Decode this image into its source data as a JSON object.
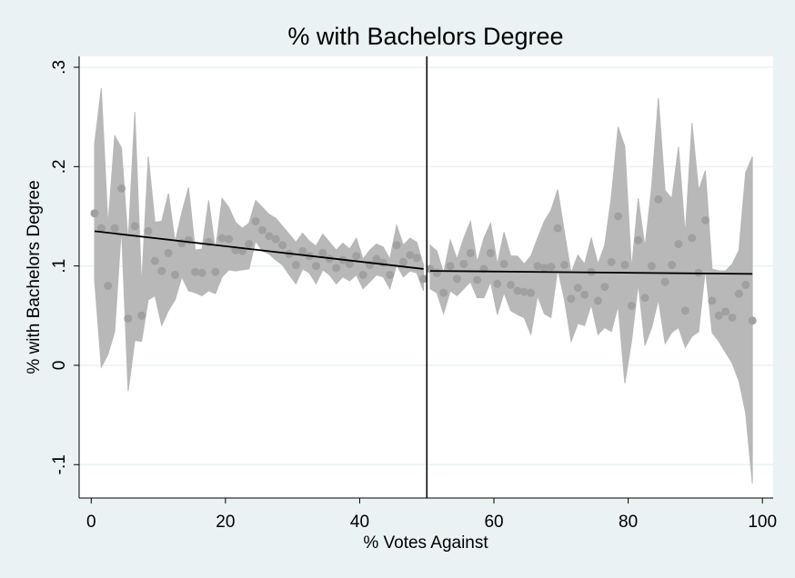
{
  "chart_data": {
    "type": "scatter",
    "title": "% with Bachelors Degree",
    "xlabel": "% Votes Against",
    "ylabel": "% with Bachelors Degree",
    "xlim": [
      -1.8,
      101.6
    ],
    "ylim": [
      -0.1336,
      0.311
    ],
    "xticks": [
      0,
      20,
      40,
      60,
      80,
      100
    ],
    "yticks": [
      {
        "value": -0.1,
        "label": "-.1"
      },
      0,
      {
        "value": 0.1,
        "label": ".1"
      },
      {
        "value": 0.2,
        "label": ".2"
      },
      {
        "value": 0.3,
        "label": ".3"
      }
    ],
    "grid": true,
    "cutoff": 50,
    "point_color": "#a0a0a0",
    "band_color": "#b8b8b8",
    "line_color": "#000000",
    "title_color": "#1a476f",
    "x": [
      0.5,
      1.5,
      2.5,
      3.5,
      4.5,
      5.5,
      6.5,
      7.5,
      8.5,
      9.5,
      10.5,
      11.5,
      12.5,
      13.5,
      14.5,
      15.5,
      16.5,
      17.5,
      18.5,
      19.5,
      20.5,
      21.5,
      22.5,
      23.5,
      24.5,
      25.5,
      26.5,
      27.5,
      28.5,
      29.5,
      30.5,
      31.5,
      32.5,
      33.5,
      34.5,
      35.5,
      36.5,
      37.5,
      38.5,
      39.5,
      40.5,
      41.5,
      42.5,
      43.5,
      44.5,
      45.5,
      46.5,
      47.5,
      48.5,
      49.5,
      50.5,
      51.5,
      52.5,
      53.5,
      54.5,
      55.5,
      56.5,
      57.5,
      58.5,
      59.5,
      60.5,
      61.5,
      62.5,
      63.5,
      64.5,
      65.5,
      66.5,
      67.5,
      68.5,
      69.5,
      70.5,
      71.5,
      72.5,
      73.5,
      74.5,
      75.5,
      76.5,
      77.5,
      78.5,
      79.5,
      80.5,
      81.5,
      82.5,
      83.5,
      84.5,
      85.5,
      86.5,
      87.5,
      88.5,
      89.5,
      90.5,
      91.5,
      92.5,
      93.5,
      94.5,
      95.5,
      96.5,
      97.5,
      98.5
    ],
    "values": [
      0.153,
      0.138,
      0.08,
      0.138,
      0.178,
      0.047,
      0.14,
      0.05,
      0.135,
      0.105,
      0.095,
      0.113,
      0.091,
      0.123,
      0.126,
      0.094,
      0.093,
      0.124,
      0.094,
      0.128,
      0.127,
      0.116,
      0.115,
      0.122,
      0.145,
      0.136,
      0.13,
      0.127,
      0.121,
      0.112,
      0.101,
      0.115,
      0.11,
      0.1,
      0.113,
      0.107,
      0.098,
      0.106,
      0.102,
      0.11,
      0.091,
      0.101,
      0.107,
      0.103,
      0.091,
      0.121,
      0.104,
      0.111,
      0.108,
      0.087,
      0.097,
      0.093,
      0.073,
      0.1,
      0.087,
      0.102,
      0.113,
      0.086,
      0.097,
      0.113,
      0.082,
      0.102,
      0.081,
      0.075,
      0.074,
      0.073,
      0.1,
      0.098,
      0.099,
      0.138,
      0.101,
      0.067,
      0.078,
      0.071,
      0.094,
      0.065,
      0.079,
      0.104,
      0.15,
      0.101,
      0.06,
      0.126,
      0.068,
      0.1,
      0.167,
      0.084,
      0.101,
      0.122,
      0.055,
      0.128,
      0.093,
      0.146,
      0.065,
      0.05,
      0.054,
      0.048,
      0.072,
      0.081,
      0.045
    ],
    "ci_upper": [
      0.223,
      0.279,
      0.141,
      0.231,
      0.219,
      0.124,
      0.255,
      0.08,
      0.21,
      0.144,
      0.145,
      0.173,
      0.124,
      0.154,
      0.179,
      0.116,
      0.117,
      0.166,
      0.116,
      0.168,
      0.159,
      0.144,
      0.138,
      0.143,
      0.166,
      0.159,
      0.152,
      0.148,
      0.14,
      0.132,
      0.124,
      0.133,
      0.125,
      0.12,
      0.132,
      0.124,
      0.116,
      0.123,
      0.117,
      0.128,
      0.107,
      0.116,
      0.122,
      0.119,
      0.107,
      0.141,
      0.121,
      0.128,
      0.124,
      0.101,
      0.121,
      0.115,
      0.093,
      0.126,
      0.107,
      0.128,
      0.145,
      0.104,
      0.128,
      0.143,
      0.102,
      0.134,
      0.11,
      0.11,
      0.102,
      0.11,
      0.128,
      0.145,
      0.156,
      0.177,
      0.134,
      0.093,
      0.111,
      0.102,
      0.128,
      0.102,
      0.121,
      0.17,
      0.24,
      0.22,
      0.097,
      0.168,
      0.119,
      0.18,
      0.269,
      0.176,
      0.168,
      0.22,
      0.132,
      0.244,
      0.176,
      0.196,
      0.097,
      0.095,
      0.095,
      0.102,
      0.116,
      0.194,
      0.21
    ],
    "ci_lower": [
      0.086,
      -0.002,
      0.011,
      0.034,
      0.139,
      -0.026,
      0.025,
      0.024,
      0.066,
      0.07,
      0.04,
      0.055,
      0.066,
      0.089,
      0.075,
      0.073,
      0.07,
      0.075,
      0.072,
      0.089,
      0.096,
      0.095,
      0.096,
      0.097,
      0.125,
      0.115,
      0.112,
      0.106,
      0.101,
      0.091,
      0.082,
      0.097,
      0.093,
      0.082,
      0.096,
      0.091,
      0.082,
      0.089,
      0.085,
      0.091,
      0.077,
      0.084,
      0.091,
      0.089,
      0.077,
      0.101,
      0.089,
      0.095,
      0.093,
      0.075,
      0.077,
      0.073,
      0.052,
      0.075,
      0.07,
      0.077,
      0.084,
      0.068,
      0.068,
      0.084,
      0.051,
      0.073,
      0.055,
      0.051,
      0.048,
      0.031,
      0.07,
      0.052,
      0.048,
      0.097,
      0.066,
      0.024,
      0.042,
      0.04,
      0.061,
      0.031,
      0.038,
      0.034,
      0.06,
      -0.018,
      0.024,
      0.082,
      0.02,
      0.038,
      0.066,
      0.022,
      0.033,
      0.038,
      0.018,
      0.029,
      0.034,
      0.097,
      0.033,
      0.024,
      0.013,
      0.002,
      -0.016,
      -0.048,
      -0.119
    ],
    "fits": [
      {
        "x": [
          0.5,
          49.5
        ],
        "values": [
          0.135,
          0.097
        ]
      },
      {
        "x": [
          50.5,
          98.5
        ],
        "values": [
          0.095,
          0.092
        ]
      }
    ]
  }
}
